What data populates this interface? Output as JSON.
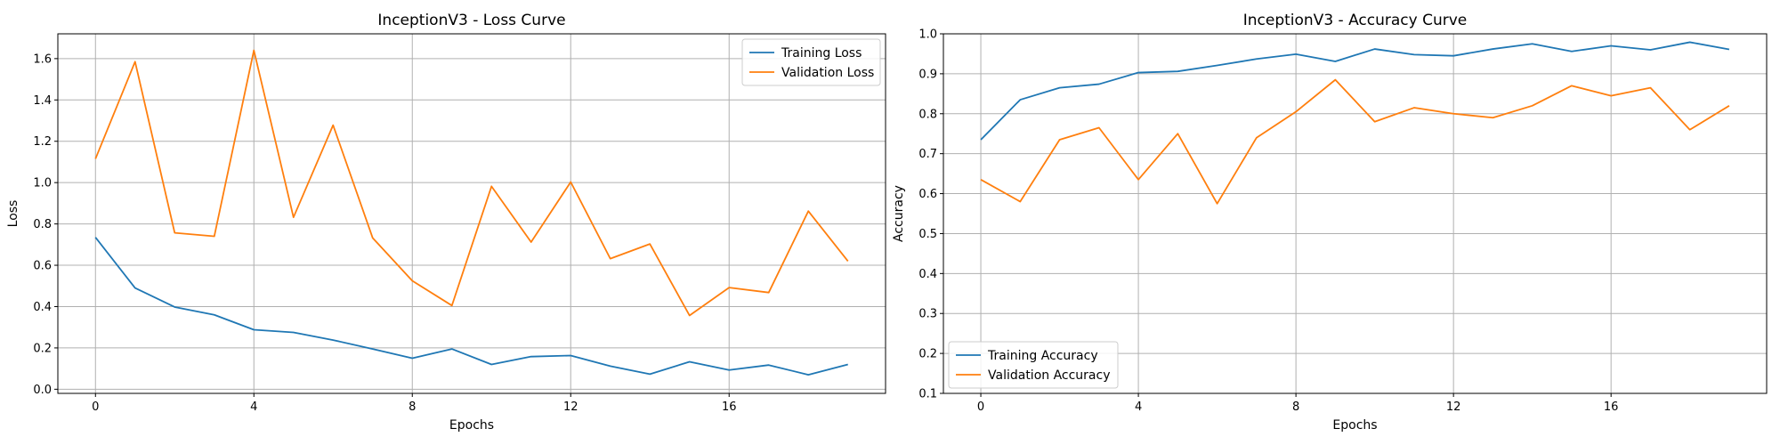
{
  "chart_data": [
    {
      "type": "line",
      "title": "InceptionV3 - Loss Curve",
      "xlabel": "Epochs",
      "ylabel": "Loss",
      "xlim": [
        -0.95,
        19.95
      ],
      "ylim": [
        -0.02,
        1.72
      ],
      "x_ticks": [
        0,
        4,
        8,
        12,
        16
      ],
      "y_ticks": [
        0.0,
        0.2,
        0.4,
        0.6,
        0.8,
        1.0,
        1.2,
        1.4,
        1.6
      ],
      "y_tick_labels": [
        "0.0",
        "0.2",
        "0.4",
        "0.6",
        "0.8",
        "1.0",
        "1.2",
        "1.4",
        "1.6"
      ],
      "grid": true,
      "legend_position": "top-right",
      "x": [
        0,
        1,
        2,
        3,
        4,
        5,
        6,
        7,
        8,
        9,
        10,
        11,
        12,
        13,
        14,
        15,
        16,
        17,
        18,
        19
      ],
      "series": [
        {
          "name": "Training Loss",
          "color": "#1f77b4",
          "values": [
            0.735,
            0.49,
            0.398,
            0.36,
            0.288,
            0.275,
            0.238,
            0.195,
            0.15,
            0.195,
            0.12,
            0.158,
            0.163,
            0.112,
            0.073,
            0.133,
            0.093,
            0.117,
            0.07,
            0.12
          ]
        },
        {
          "name": "Validation Loss",
          "color": "#ff7f0e",
          "values": [
            1.115,
            1.585,
            0.757,
            0.74,
            1.64,
            0.832,
            1.278,
            0.732,
            0.525,
            0.405,
            0.982,
            0.712,
            1.003,
            0.632,
            0.703,
            0.357,
            0.492,
            0.468,
            0.862,
            0.62
          ]
        }
      ]
    },
    {
      "type": "line",
      "title": "InceptionV3 - Accuracy Curve",
      "xlabel": "Epochs",
      "ylabel": "Accuracy",
      "xlim": [
        -0.95,
        19.95
      ],
      "ylim": [
        0.1,
        1.0
      ],
      "x_ticks": [
        0,
        4,
        8,
        12,
        16
      ],
      "y_ticks": [
        0.1,
        0.2,
        0.3,
        0.4,
        0.5,
        0.6,
        0.7,
        0.8,
        0.9,
        1.0
      ],
      "y_tick_labels": [
        "0.1",
        "0.2",
        "0.3",
        "0.4",
        "0.5",
        "0.6",
        "0.7",
        "0.8",
        "0.9",
        "1.0"
      ],
      "grid": true,
      "legend_position": "bottom-left",
      "x": [
        0,
        1,
        2,
        3,
        4,
        5,
        6,
        7,
        8,
        9,
        10,
        11,
        12,
        13,
        14,
        15,
        16,
        17,
        18,
        19
      ],
      "series": [
        {
          "name": "Training Accuracy",
          "color": "#1f77b4",
          "values": [
            0.735,
            0.835,
            0.865,
            0.874,
            0.903,
            0.906,
            0.921,
            0.937,
            0.949,
            0.931,
            0.962,
            0.948,
            0.945,
            0.962,
            0.975,
            0.956,
            0.97,
            0.96,
            0.979,
            0.961
          ]
        },
        {
          "name": "Validation Accuracy",
          "color": "#ff7f0e",
          "values": [
            0.635,
            0.58,
            0.735,
            0.765,
            0.635,
            0.75,
            0.575,
            0.74,
            0.805,
            0.885,
            0.78,
            0.815,
            0.8,
            0.79,
            0.82,
            0.87,
            0.845,
            0.865,
            0.76,
            0.82
          ]
        }
      ]
    }
  ]
}
